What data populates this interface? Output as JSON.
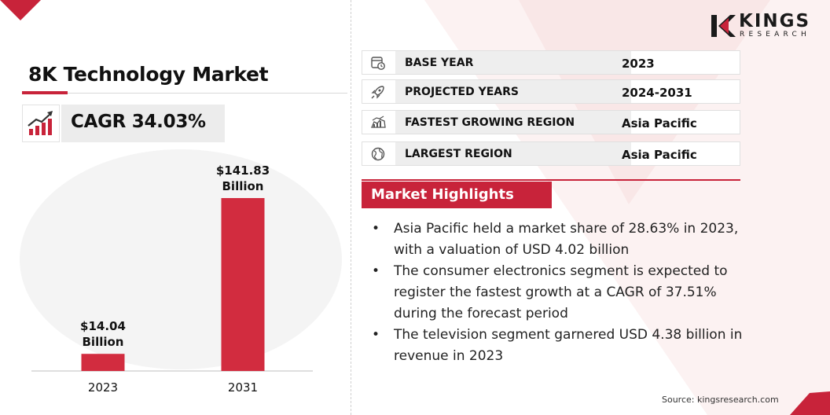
{
  "title": "8K Technology Market",
  "cagr": "CAGR 34.03%",
  "chart_data": {
    "type": "bar",
    "categories": [
      "2023",
      "2031"
    ],
    "values": [
      14.04,
      141.83
    ],
    "data_labels": [
      [
        "$14.04",
        "Billion"
      ],
      [
        "$141.83",
        "Billion"
      ]
    ],
    "title": "",
    "xlabel": "",
    "ylabel": "",
    "color": "#d22c3f",
    "grid": false
  },
  "info_rows": [
    {
      "icon": "calendar-clock-icon",
      "label": "BASE YEAR",
      "value": "2023"
    },
    {
      "icon": "rocket-icon",
      "label": "PROJECTED YEARS",
      "value": "2024-2031"
    },
    {
      "icon": "growth-map-icon",
      "label": "FASTEST GROWING REGION",
      "value": "Asia Pacific"
    },
    {
      "icon": "globe-icon",
      "label": "LARGEST REGION",
      "value": "Asia Pacific"
    }
  ],
  "highlights": {
    "title": "Market Highlights",
    "bullet": "•",
    "items": [
      [
        "Asia Pacific held a market share of 28.63% in 2023,",
        "with a valuation of USD 4.02 billion"
      ],
      [
        "The consumer electronics segment is expected to",
        "register the fastest growth at a CAGR of 37.51%",
        "during the forecast period"
      ],
      [
        "The television segment garnered USD 4.38 billion in",
        "revenue in 2023"
      ]
    ]
  },
  "logo": {
    "kings": "KINGS",
    "research": "RESEARCH"
  },
  "source": "Source: kingsresearch.com",
  "colors": {
    "accent": "#c8233a",
    "bar": "#d22c3f"
  }
}
